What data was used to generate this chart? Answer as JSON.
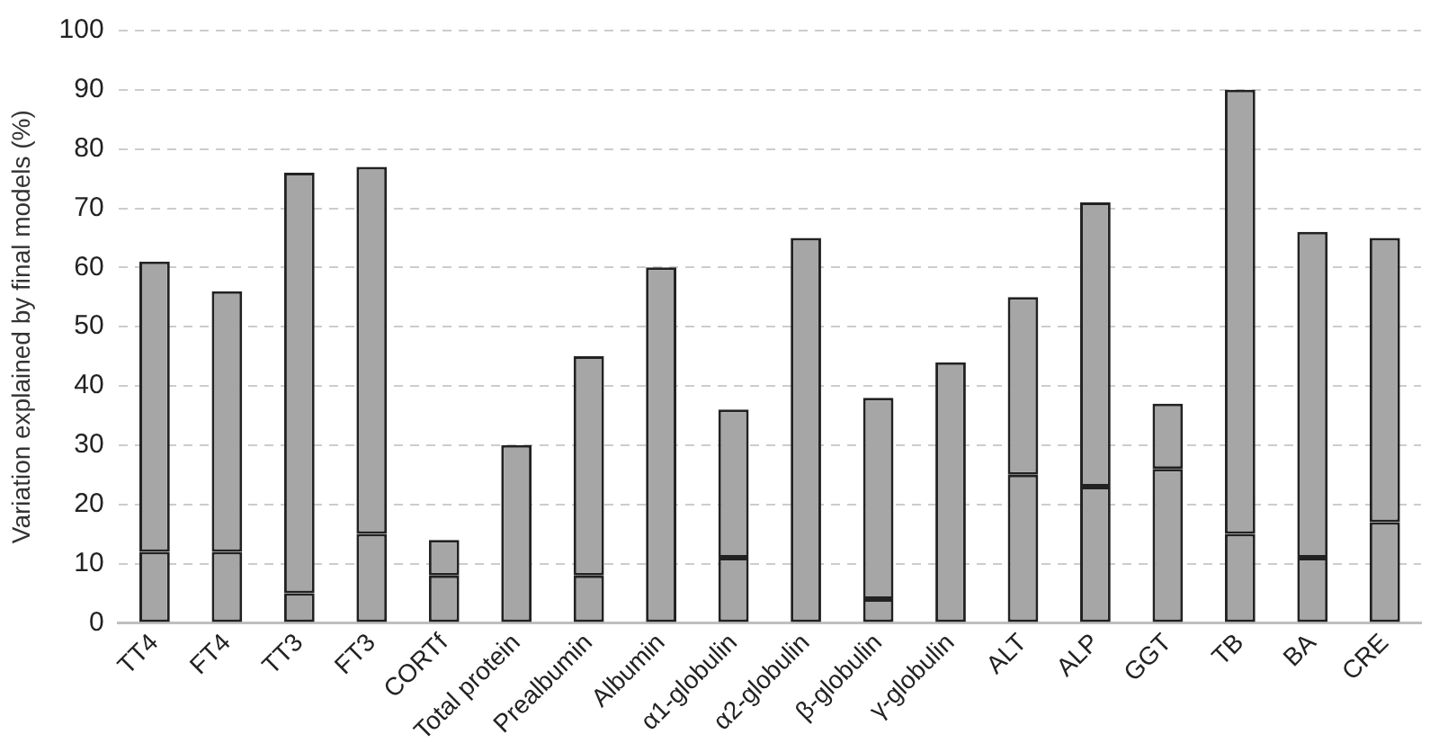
{
  "chart_data": {
    "type": "bar",
    "stacked": true,
    "ylabel": "Variation explained by final models (%)",
    "categories": [
      "TT4",
      "FT4",
      "TT3",
      "FT3",
      "CORTf",
      "Total protein",
      "Prealbumin",
      "Albumin",
      "α1-globulin",
      "α2-globulin",
      "β-globulin",
      "γ-globulin",
      "ALT",
      "ALP",
      "GGT",
      "TB",
      "BA",
      "CRE"
    ],
    "series": [
      {
        "color": "#a6a6a6",
        "values": [
          12,
          12,
          5,
          15,
          8,
          0,
          8,
          0,
          11,
          0,
          4,
          0,
          25,
          23,
          26,
          15,
          11,
          17
        ]
      },
      {
        "color": "#a6a6a6",
        "values": [
          49,
          44,
          71,
          62,
          6,
          30,
          37,
          60,
          25,
          65,
          34,
          44,
          30,
          48,
          11,
          75,
          55,
          48
        ]
      }
    ],
    "ylim": [
      0,
      100
    ],
    "yticks": [
      0,
      10,
      20,
      30,
      40,
      50,
      60,
      70,
      80,
      90,
      100
    ],
    "grid": "y",
    "legend": false
  }
}
